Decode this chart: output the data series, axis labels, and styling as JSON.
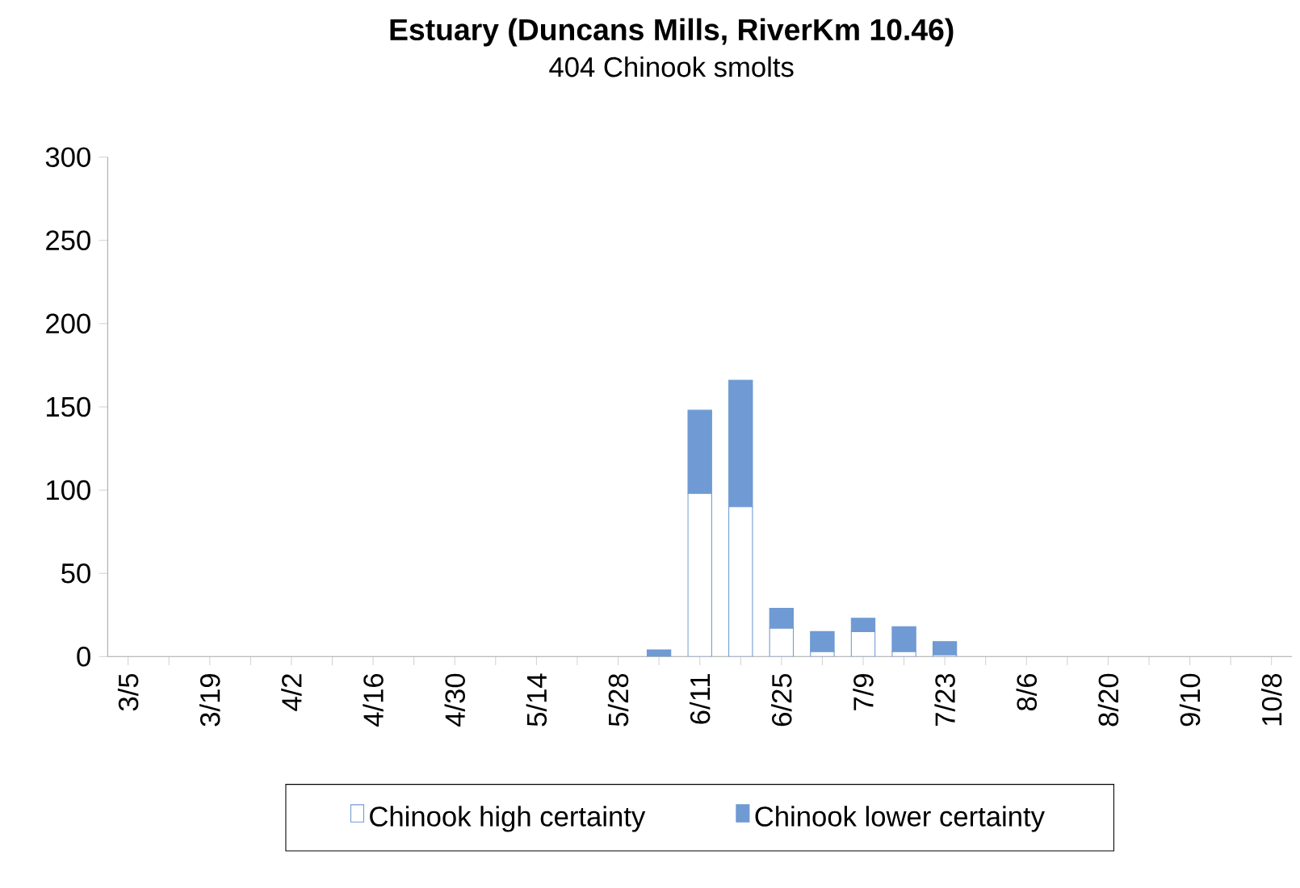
{
  "chart_data": {
    "type": "bar",
    "title": "Estuary (Duncans Mills, RiverKm 10.46)",
    "subtitle": "404 Chinook smolts",
    "categories": [
      "3/5",
      null,
      "3/19",
      null,
      "4/2",
      null,
      "4/16",
      null,
      "4/30",
      null,
      "5/14",
      null,
      "5/28",
      null,
      "6/11",
      null,
      "6/25",
      null,
      "7/9",
      null,
      "7/23",
      null,
      "8/6",
      null,
      "8/20",
      null,
      "9/10",
      null,
      "10/8"
    ],
    "stacked": true,
    "ylim": [
      0,
      300
    ],
    "yticks": [
      0,
      50,
      100,
      150,
      200,
      250,
      300
    ],
    "legend": "bottom",
    "grid": false,
    "series": [
      {
        "name": "Chinook high certainty",
        "color": "#ffffff",
        "values": [
          0,
          0,
          0,
          0,
          0,
          0,
          0,
          0,
          0,
          0,
          0,
          0,
          0,
          0,
          98,
          90,
          17,
          3,
          15,
          3,
          1,
          0,
          0,
          0,
          0,
          0,
          0,
          0,
          0
        ]
      },
      {
        "name": "Chinook lower certainty",
        "color": "#6f9ad3",
        "values": [
          0,
          0,
          0,
          0,
          0,
          0,
          0,
          0,
          0,
          0,
          0,
          0,
          0,
          4,
          50,
          76,
          12,
          12,
          8,
          15,
          8,
          0,
          0,
          0,
          0,
          0,
          0,
          0,
          0
        ]
      }
    ]
  }
}
